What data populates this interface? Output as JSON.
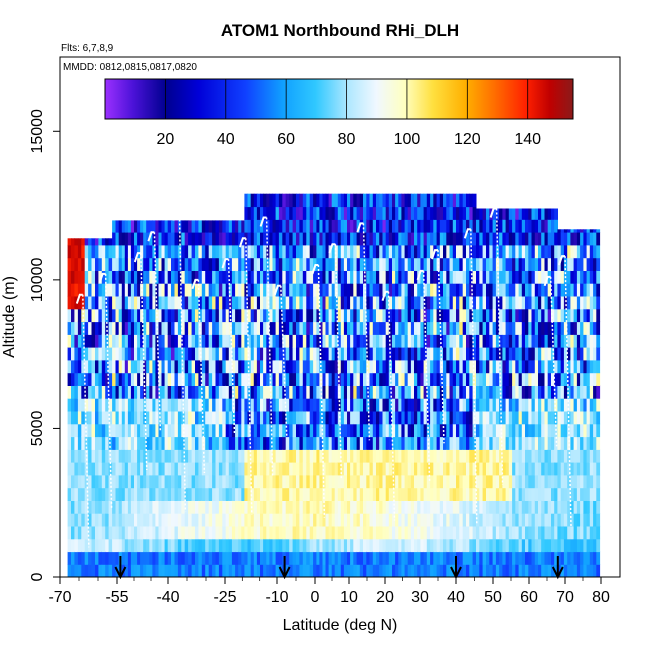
{
  "chart_data": {
    "type": "heatmap",
    "title": "ATOM1 Northbound RHi_DLH",
    "flights_note": "Flts: 6,7,8,9",
    "dates_note": "MMDD: 0812,0815,0817,0820",
    "xlabel": "Latitude (deg N)",
    "ylabel": "Altitude (m)",
    "x_ticks": [
      "-70",
      "-55",
      "-40",
      "-25",
      "-10",
      "0",
      "10",
      "20",
      "30",
      "40",
      "50",
      "60",
      "70",
      "80"
    ],
    "y_ticks": [
      "0",
      "5000",
      "10000",
      "15000"
    ],
    "ylim": [
      0,
      17500
    ],
    "colorbar": {
      "range": [
        0,
        155
      ],
      "ticks": [
        "20",
        "40",
        "60",
        "80",
        "100",
        "120",
        "140"
      ],
      "colors": [
        "#9b30ff",
        "#4b12d8",
        "#000090",
        "#0000d8",
        "#1040ff",
        "#10a0ff",
        "#30c8ff",
        "#b0e8ff",
        "#f0f8ff",
        "#ffffc0",
        "#ffe040",
        "#ffb000",
        "#ff7000",
        "#ff2000",
        "#c00000",
        "#8b1a1a"
      ]
    },
    "arrow_latitudes": [
      -54,
      -8,
      40,
      68
    ],
    "profile_latitudes": [
      -64,
      -58,
      -48,
      -44,
      -37,
      -32,
      -24,
      -19,
      -13,
      -9,
      1,
      6,
      14,
      21,
      31,
      35,
      44,
      51,
      66,
      70
    ]
  }
}
